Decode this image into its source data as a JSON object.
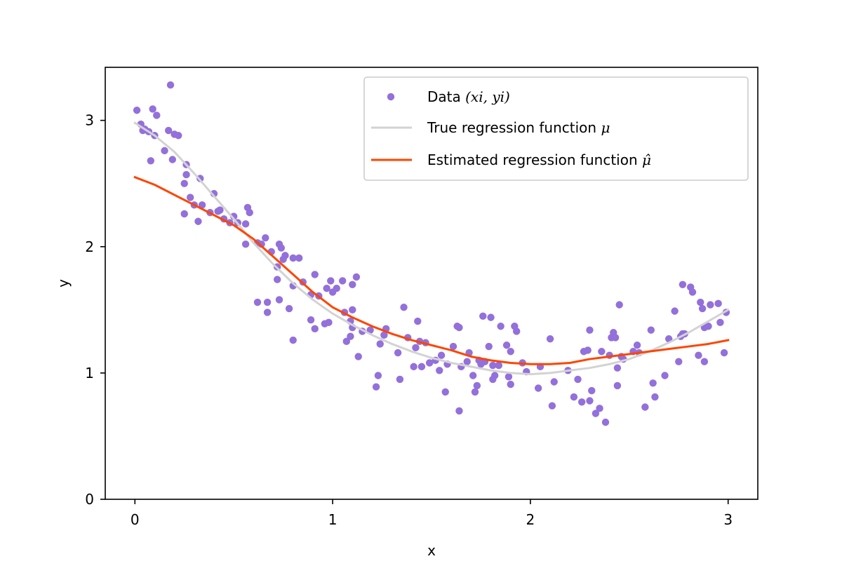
{
  "chart_data": {
    "type": "scatter",
    "xlabel": "x",
    "ylabel": "y",
    "xlim": [
      -0.15,
      3.15
    ],
    "ylim": [
      0,
      3.42
    ],
    "xticks": [
      0,
      1,
      2,
      3
    ],
    "yticks": [
      0,
      1,
      2,
      3
    ],
    "grid": false,
    "legend_position": "top-right",
    "legend": [
      {
        "label": "Data ",
        "math": "(xi, yi)",
        "kind": "marker"
      },
      {
        "label": "True regression function ",
        "math": "μ",
        "kind": "line"
      },
      {
        "label": "Estimated regression function ",
        "math": "μ̂",
        "kind": "line"
      }
    ],
    "colors": {
      "data": "#9370db",
      "true_line": "#d3d3d3",
      "estimated_line": "#ff4500"
    },
    "series": [
      {
        "kind": "scatter",
        "points": [
          [
            0.01,
            3.08
          ],
          [
            0.03,
            2.97
          ],
          [
            0.04,
            2.92
          ],
          [
            0.07,
            2.91
          ],
          [
            0.08,
            2.68
          ],
          [
            0.09,
            3.09
          ],
          [
            0.1,
            2.88
          ],
          [
            0.11,
            3.04
          ],
          [
            0.15,
            2.76
          ],
          [
            0.17,
            2.92
          ],
          [
            0.18,
            3.28
          ],
          [
            0.19,
            2.69
          ],
          [
            0.2,
            2.89
          ],
          [
            0.22,
            2.88
          ],
          [
            0.25,
            2.5
          ],
          [
            0.26,
            2.65
          ],
          [
            0.26,
            2.57
          ],
          [
            0.25,
            2.26
          ],
          [
            0.28,
            2.39
          ],
          [
            0.3,
            2.33
          ],
          [
            0.32,
            2.2
          ],
          [
            0.33,
            2.54
          ],
          [
            0.34,
            2.33
          ],
          [
            0.4,
            2.42
          ],
          [
            0.42,
            2.28
          ],
          [
            0.43,
            2.29
          ],
          [
            0.45,
            2.22
          ],
          [
            0.48,
            2.19
          ],
          [
            0.5,
            2.24
          ],
          [
            0.52,
            2.19
          ],
          [
            0.56,
            2.18
          ],
          [
            0.56,
            2.02
          ],
          [
            0.57,
            2.31
          ],
          [
            0.58,
            2.27
          ],
          [
            0.62,
            1.56
          ],
          [
            0.62,
            2.03
          ],
          [
            0.64,
            2.02
          ],
          [
            0.66,
            2.07
          ],
          [
            0.67,
            1.56
          ],
          [
            0.67,
            1.48
          ],
          [
            0.72,
            1.74
          ],
          [
            0.72,
            1.84
          ],
          [
            0.73,
            2.02
          ],
          [
            0.73,
            1.58
          ],
          [
            0.74,
            1.99
          ],
          [
            0.75,
            1.9
          ],
          [
            0.76,
            1.93
          ],
          [
            0.78,
            1.51
          ],
          [
            0.8,
            1.26
          ],
          [
            0.8,
            1.91
          ],
          [
            0.8,
            1.69
          ],
          [
            0.83,
            1.91
          ],
          [
            0.85,
            1.72
          ],
          [
            0.89,
            1.62
          ],
          [
            0.89,
            1.42
          ],
          [
            0.91,
            1.78
          ],
          [
            0.91,
            1.35
          ],
          [
            0.93,
            1.61
          ],
          [
            0.96,
            1.39
          ],
          [
            0.97,
            1.67
          ],
          [
            0.98,
            1.4
          ],
          [
            0.99,
            1.73
          ],
          [
            1.0,
            1.64
          ],
          [
            1.05,
            1.73
          ],
          [
            1.06,
            1.48
          ],
          [
            1.07,
            1.25
          ],
          [
            1.09,
            1.29
          ],
          [
            1.09,
            1.41
          ],
          [
            1.1,
            1.36
          ],
          [
            1.1,
            1.5
          ],
          [
            1.1,
            1.7
          ],
          [
            1.12,
            1.76
          ],
          [
            1.13,
            1.13
          ],
          [
            1.15,
            1.33
          ],
          [
            1.22,
            0.89
          ],
          [
            1.23,
            0.98
          ],
          [
            1.24,
            1.23
          ],
          [
            1.26,
            1.3
          ],
          [
            1.27,
            1.35
          ],
          [
            1.33,
            1.16
          ],
          [
            1.34,
            0.95
          ],
          [
            1.36,
            1.52
          ],
          [
            1.38,
            1.28
          ],
          [
            1.41,
            1.05
          ],
          [
            1.42,
            1.2
          ],
          [
            1.43,
            1.41
          ],
          [
            1.44,
            1.25
          ],
          [
            1.45,
            1.05
          ],
          [
            1.47,
            1.24
          ],
          [
            1.49,
            1.08
          ],
          [
            1.52,
            1.1
          ],
          [
            1.54,
            1.02
          ],
          [
            1.55,
            1.14
          ],
          [
            1.57,
            0.85
          ],
          [
            1.58,
            1.07
          ],
          [
            1.63,
            1.37
          ],
          [
            1.64,
            0.7
          ],
          [
            1.64,
            1.36
          ],
          [
            1.65,
            1.05
          ],
          [
            1.68,
            1.09
          ],
          [
            1.69,
            1.16
          ],
          [
            1.71,
            0.98
          ],
          [
            1.72,
            0.85
          ],
          [
            1.73,
            0.9
          ],
          [
            1.74,
            1.1
          ],
          [
            1.75,
            1.07
          ],
          [
            1.76,
            1.45
          ],
          [
            1.77,
            1.09
          ],
          [
            1.79,
            1.21
          ],
          [
            1.8,
            1.44
          ],
          [
            1.81,
            0.95
          ],
          [
            1.81,
            1.06
          ],
          [
            1.82,
            0.98
          ],
          [
            1.84,
            1.06
          ],
          [
            1.85,
            1.37
          ],
          [
            1.88,
            1.22
          ],
          [
            1.89,
            0.97
          ],
          [
            1.9,
            0.91
          ],
          [
            1.9,
            1.17
          ],
          [
            1.92,
            1.37
          ],
          [
            1.93,
            1.33
          ],
          [
            1.96,
            1.08
          ],
          [
            1.98,
            1.01
          ],
          [
            2.04,
            0.88
          ],
          [
            2.1,
            1.27
          ],
          [
            2.11,
            0.74
          ],
          [
            2.12,
            0.93
          ],
          [
            2.19,
            1.02
          ],
          [
            2.22,
            0.81
          ],
          [
            2.24,
            0.95
          ],
          [
            2.26,
            0.77
          ],
          [
            2.27,
            1.17
          ],
          [
            2.29,
            1.18
          ],
          [
            2.3,
            0.78
          ],
          [
            2.3,
            1.34
          ],
          [
            2.31,
            0.86
          ],
          [
            2.33,
            0.68
          ],
          [
            2.35,
            0.72
          ],
          [
            2.36,
            1.17
          ],
          [
            2.38,
            0.61
          ],
          [
            2.4,
            1.14
          ],
          [
            2.41,
            1.28
          ],
          [
            2.42,
            1.32
          ],
          [
            2.43,
            1.28
          ],
          [
            2.44,
            1.04
          ],
          [
            2.44,
            0.9
          ],
          [
            2.45,
            1.54
          ],
          [
            2.46,
            1.13
          ],
          [
            2.47,
            1.11
          ],
          [
            2.52,
            1.17
          ],
          [
            2.54,
            1.22
          ],
          [
            2.58,
            0.73
          ],
          [
            2.61,
            1.34
          ],
          [
            2.62,
            0.92
          ],
          [
            2.63,
            0.81
          ],
          [
            2.68,
            0.98
          ],
          [
            2.7,
            1.27
          ],
          [
            2.73,
            1.49
          ],
          [
            2.75,
            1.09
          ],
          [
            2.76,
            1.29
          ],
          [
            2.77,
            1.7
          ],
          [
            2.77,
            1.31
          ],
          [
            2.78,
            1.31
          ],
          [
            2.81,
            1.68
          ],
          [
            2.82,
            1.64
          ],
          [
            2.85,
            1.14
          ],
          [
            2.86,
            1.56
          ],
          [
            2.87,
            1.51
          ],
          [
            2.88,
            1.09
          ],
          [
            2.88,
            1.36
          ],
          [
            2.9,
            1.37
          ],
          [
            2.91,
            1.54
          ],
          [
            2.95,
            1.55
          ],
          [
            2.96,
            1.4
          ],
          [
            2.98,
            1.16
          ],
          [
            2.99,
            1.48
          ],
          [
            0.05,
            2.93
          ],
          [
            0.38,
            2.27
          ],
          [
            0.69,
            1.96
          ],
          [
            1.19,
            1.34
          ],
          [
            1.61,
            1.21
          ],
          [
            2.05,
            1.05
          ],
          [
            2.55,
            1.16
          ],
          [
            1.02,
            1.67
          ]
        ]
      },
      {
        "kind": "line",
        "name": "true",
        "points": [
          [
            0.0,
            2.98
          ],
          [
            0.1,
            2.88
          ],
          [
            0.2,
            2.75
          ],
          [
            0.3,
            2.58
          ],
          [
            0.4,
            2.4
          ],
          [
            0.5,
            2.22
          ],
          [
            0.6,
            2.03
          ],
          [
            0.7,
            1.86
          ],
          [
            0.8,
            1.71
          ],
          [
            0.9,
            1.58
          ],
          [
            1.0,
            1.47
          ],
          [
            1.1,
            1.38
          ],
          [
            1.2,
            1.3
          ],
          [
            1.3,
            1.23
          ],
          [
            1.4,
            1.17
          ],
          [
            1.5,
            1.12
          ],
          [
            1.6,
            1.08
          ],
          [
            1.7,
            1.05
          ],
          [
            1.8,
            1.02
          ],
          [
            1.9,
            1.0
          ],
          [
            2.0,
            0.99
          ],
          [
            2.1,
            1.0
          ],
          [
            2.2,
            1.02
          ],
          [
            2.3,
            1.04
          ],
          [
            2.4,
            1.07
          ],
          [
            2.5,
            1.11
          ],
          [
            2.6,
            1.17
          ],
          [
            2.7,
            1.24
          ],
          [
            2.8,
            1.32
          ],
          [
            2.9,
            1.41
          ],
          [
            3.0,
            1.5
          ]
        ]
      },
      {
        "kind": "line",
        "name": "estimated",
        "points": [
          [
            0.0,
            2.55
          ],
          [
            0.1,
            2.49
          ],
          [
            0.2,
            2.41
          ],
          [
            0.3,
            2.33
          ],
          [
            0.4,
            2.25
          ],
          [
            0.5,
            2.17
          ],
          [
            0.6,
            2.06
          ],
          [
            0.7,
            1.92
          ],
          [
            0.8,
            1.78
          ],
          [
            0.9,
            1.64
          ],
          [
            1.0,
            1.52
          ],
          [
            1.1,
            1.44
          ],
          [
            1.2,
            1.37
          ],
          [
            1.3,
            1.31
          ],
          [
            1.4,
            1.26
          ],
          [
            1.5,
            1.22
          ],
          [
            1.6,
            1.18
          ],
          [
            1.7,
            1.13
          ],
          [
            1.8,
            1.1
          ],
          [
            1.9,
            1.08
          ],
          [
            2.0,
            1.07
          ],
          [
            2.1,
            1.07
          ],
          [
            2.2,
            1.08
          ],
          [
            2.3,
            1.11
          ],
          [
            2.4,
            1.13
          ],
          [
            2.5,
            1.15
          ],
          [
            2.6,
            1.17
          ],
          [
            2.7,
            1.19
          ],
          [
            2.8,
            1.21
          ],
          [
            2.9,
            1.23
          ],
          [
            3.0,
            1.26
          ]
        ]
      }
    ]
  }
}
